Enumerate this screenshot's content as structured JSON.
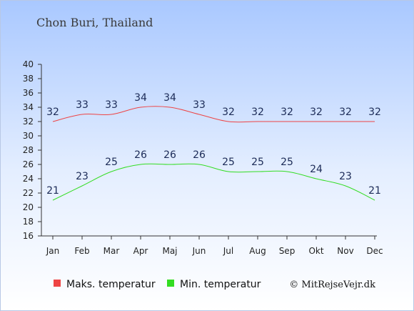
{
  "chart_data": {
    "type": "line",
    "title": "Chon Buri, Thailand",
    "categories": [
      "Jan",
      "Feb",
      "Mar",
      "Apr",
      "Maj",
      "Jun",
      "Jul",
      "Aug",
      "Sep",
      "Okt",
      "Nov",
      "Dec"
    ],
    "ylim": [
      16,
      40
    ],
    "yticks": [
      16,
      18,
      20,
      22,
      24,
      26,
      28,
      30,
      32,
      34,
      36,
      38,
      40
    ],
    "series": [
      {
        "name": "Maks. temperatur",
        "color": "#ee4444",
        "values": [
          32,
          33,
          33,
          34,
          34,
          33,
          32,
          32,
          32,
          32,
          32,
          32
        ]
      },
      {
        "name": "Min. temperatur",
        "color": "#33dd22",
        "values": [
          21,
          23,
          25,
          26,
          26,
          26,
          25,
          25,
          25,
          24,
          23,
          21
        ]
      }
    ],
    "legend_position": "bottom",
    "grid": false
  },
  "copyright": "© MitRejseVejr.dk",
  "colors": {
    "background_top": "#a9c8ff",
    "background_bottom": "#ffffff",
    "text": "#1c2b57"
  }
}
